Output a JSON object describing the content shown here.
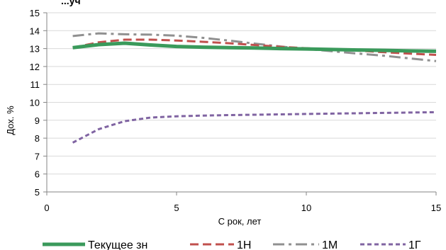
{
  "chart_data": {
    "type": "line",
    "xlabel": "С рок, лет",
    "ylabel": "Дох. %",
    "xlim": [
      0,
      15
    ],
    "ylim": [
      5,
      15
    ],
    "xticks": [
      0,
      5,
      10,
      15
    ],
    "yticks": [
      5,
      6,
      7,
      8,
      9,
      10,
      11,
      12,
      13,
      14,
      15
    ],
    "grid": "horizontal",
    "legend_position": "bottom",
    "series": [
      {
        "name": "Текущее зн",
        "color": "#3a9a5b",
        "style": "solid",
        "points": [
          [
            1,
            13.05
          ],
          [
            2,
            13.22
          ],
          [
            3,
            13.3
          ],
          [
            4,
            13.2
          ],
          [
            5,
            13.12
          ],
          [
            6,
            13.08
          ],
          [
            7,
            13.05
          ],
          [
            8,
            13.03
          ],
          [
            9,
            13.0
          ],
          [
            10,
            12.98
          ],
          [
            11,
            12.95
          ],
          [
            12,
            12.92
          ],
          [
            13,
            12.9
          ],
          [
            14,
            12.87
          ],
          [
            15,
            12.85
          ]
        ]
      },
      {
        "name": "1Н",
        "color": "#c0504d",
        "style": "dash",
        "points": [
          [
            1,
            13.05
          ],
          [
            2,
            13.35
          ],
          [
            3,
            13.5
          ],
          [
            4,
            13.5
          ],
          [
            5,
            13.45
          ],
          [
            6,
            13.38
          ],
          [
            7,
            13.3
          ],
          [
            8,
            13.2
          ],
          [
            9,
            13.1
          ],
          [
            10,
            13.02
          ],
          [
            11,
            12.95
          ],
          [
            12,
            12.88
          ],
          [
            13,
            12.8
          ],
          [
            14,
            12.72
          ],
          [
            15,
            12.65
          ]
        ]
      },
      {
        "name": "1М",
        "color": "#909090",
        "style": "dashdot",
        "points": [
          [
            1,
            13.7
          ],
          [
            2,
            13.85
          ],
          [
            3,
            13.8
          ],
          [
            4,
            13.78
          ],
          [
            5,
            13.72
          ],
          [
            6,
            13.6
          ],
          [
            7,
            13.45
          ],
          [
            8,
            13.28
          ],
          [
            9,
            13.12
          ],
          [
            10,
            12.98
          ],
          [
            11,
            12.85
          ],
          [
            12,
            12.72
          ],
          [
            13,
            12.6
          ],
          [
            14,
            12.45
          ],
          [
            15,
            12.3
          ]
        ]
      },
      {
        "name": "1Г",
        "color": "#8064a2",
        "style": "shortdash",
        "points": [
          [
            1,
            7.75
          ],
          [
            2,
            8.5
          ],
          [
            3,
            8.95
          ],
          [
            4,
            9.15
          ],
          [
            5,
            9.22
          ],
          [
            6,
            9.26
          ],
          [
            7,
            9.29
          ],
          [
            8,
            9.31
          ],
          [
            9,
            9.33
          ],
          [
            10,
            9.35
          ],
          [
            11,
            9.37
          ],
          [
            12,
            9.39
          ],
          [
            13,
            9.41
          ],
          [
            14,
            9.43
          ],
          [
            15,
            9.45
          ]
        ]
      }
    ],
    "title_partial": "...уч"
  }
}
